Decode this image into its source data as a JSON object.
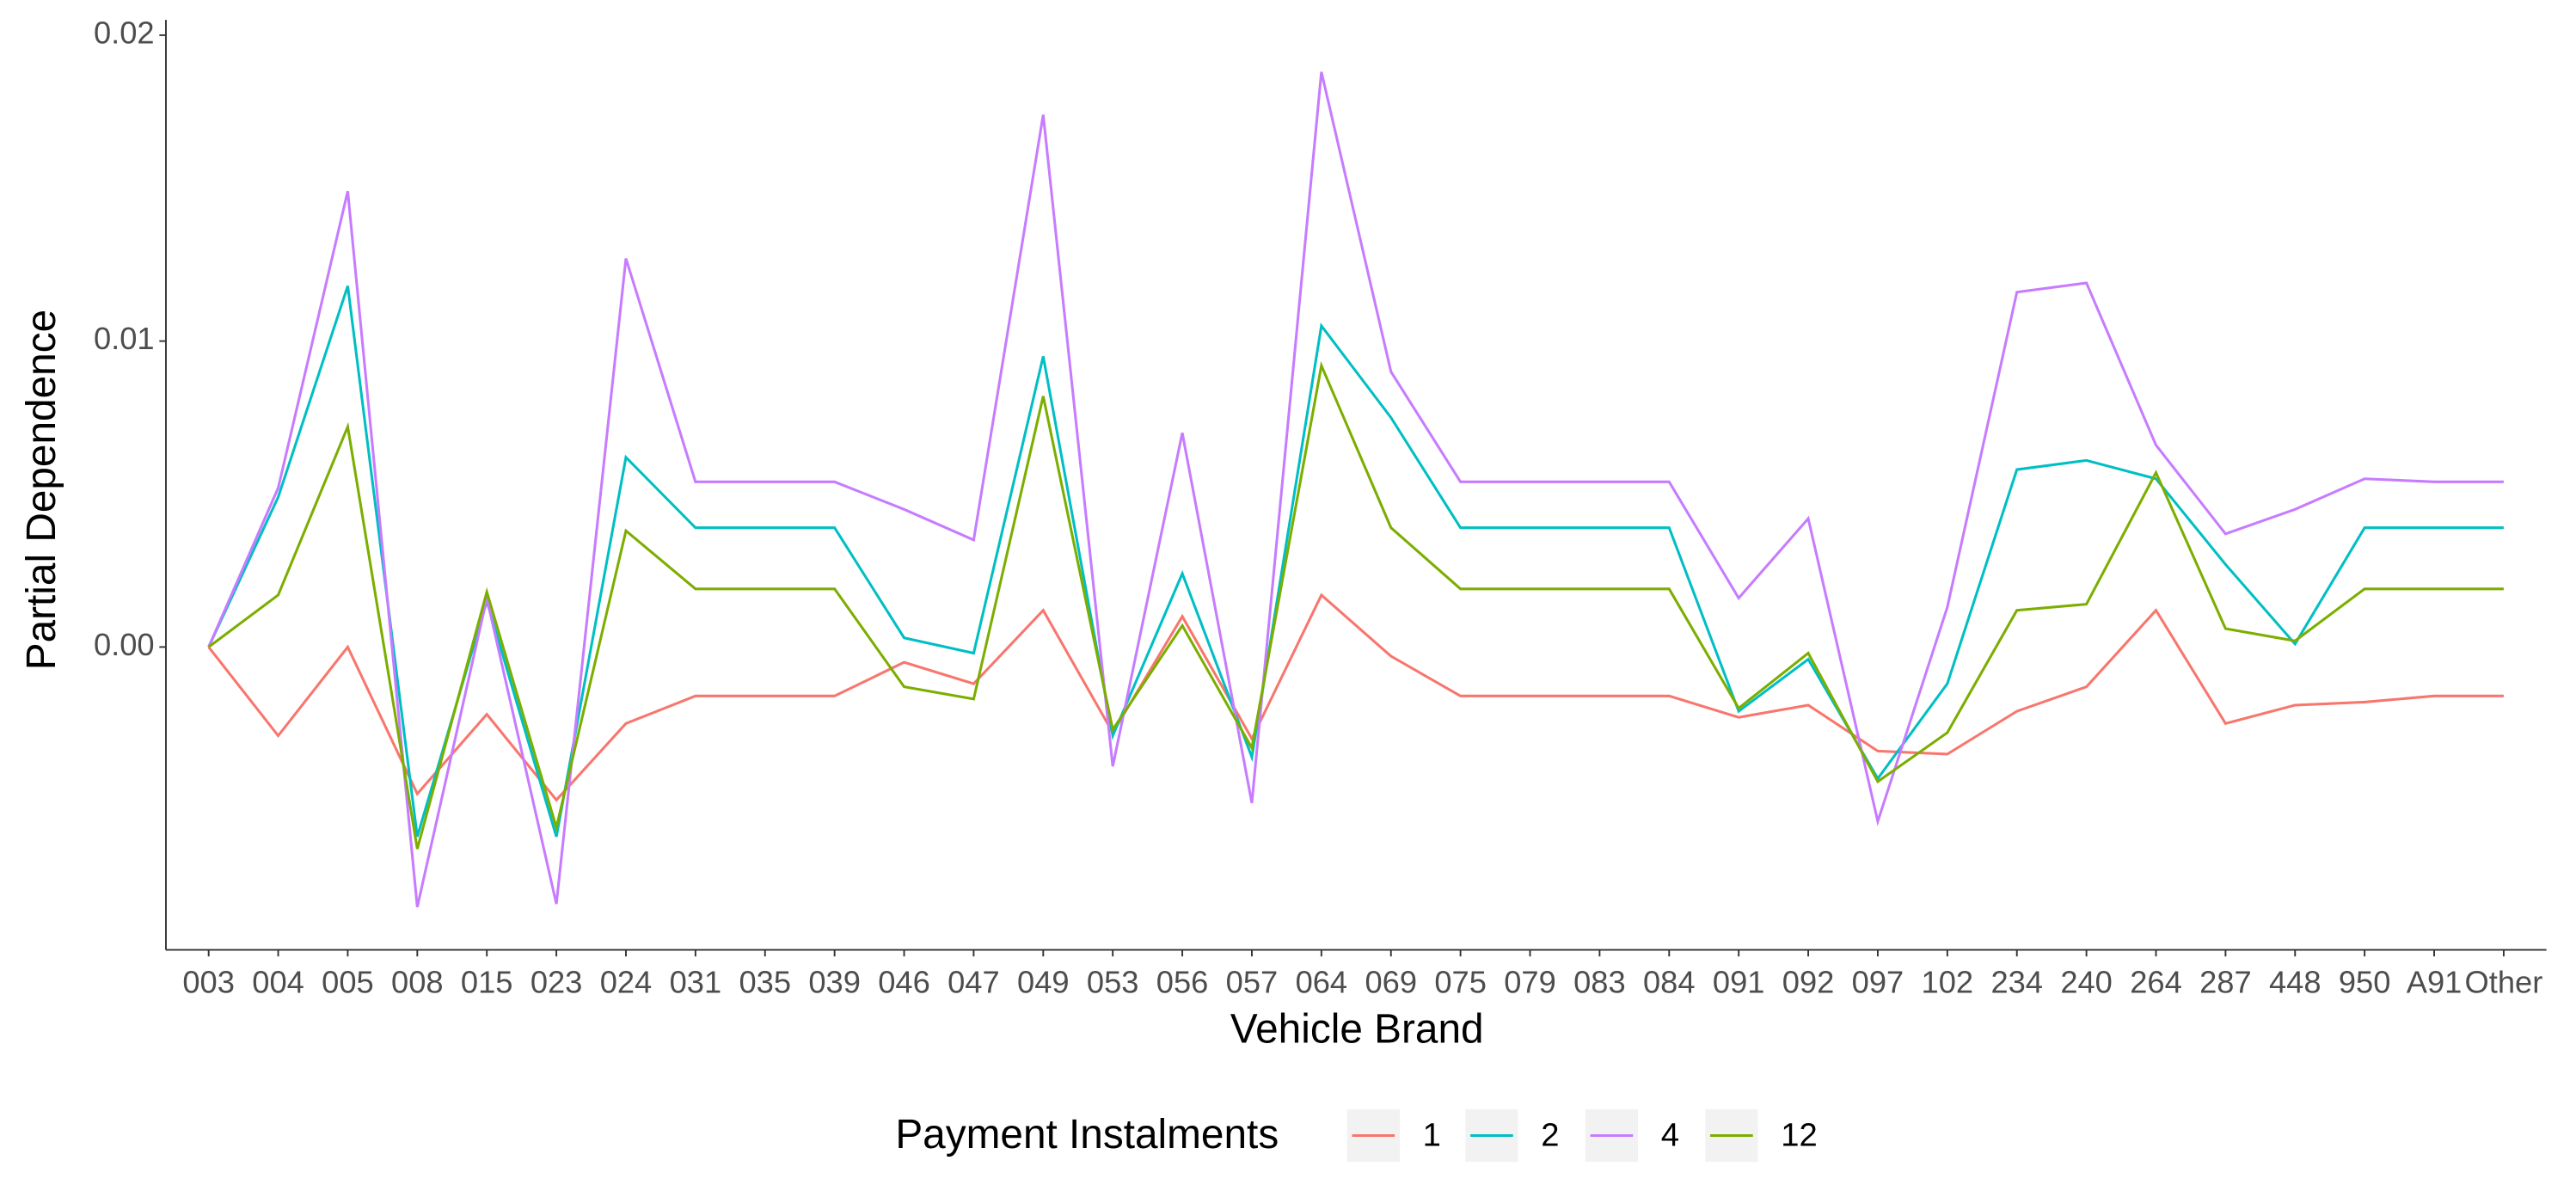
{
  "chart_data": {
    "type": "line",
    "x_label": "Vehicle Brand",
    "y_label": "Partial Dependence",
    "legend_title": "Payment Instalments",
    "legend_position": "bottom",
    "categories": [
      "003",
      "004",
      "005",
      "008",
      "015",
      "023",
      "024",
      "031",
      "035",
      "039",
      "046",
      "047",
      "049",
      "053",
      "056",
      "057",
      "064",
      "069",
      "075",
      "079",
      "083",
      "084",
      "091",
      "092",
      "097",
      "102",
      "234",
      "240",
      "264",
      "287",
      "448",
      "950",
      "A91",
      "Other"
    ],
    "ylim": [
      -0.0099,
      0.0205
    ],
    "yticks": [
      {
        "value": 0,
        "label": "0.00"
      },
      {
        "value": 0.01,
        "label": "0.01"
      },
      {
        "value": 0.02,
        "label": "0.02"
      }
    ],
    "series": [
      {
        "name": "1",
        "color": "#F8766D",
        "values": [
          0,
          -0.0029,
          0,
          -0.0048,
          -0.0022,
          -0.005,
          -0.0025,
          -0.0016,
          -0.0016,
          -0.0016,
          -0.0005,
          -0.0012,
          0.0012,
          -0.0028,
          0.001,
          -0.003,
          0.0017,
          -0.0003,
          -0.0016,
          -0.0016,
          -0.0016,
          -0.0016,
          -0.0023,
          -0.0019,
          -0.0034,
          -0.0035,
          -0.0021,
          -0.0013,
          0.0012,
          -0.0025,
          -0.0019,
          -0.0018,
          -0.0016,
          -0.0016
        ]
      },
      {
        "name": "2",
        "color": "#00BFC4",
        "values": [
          0,
          0.0049,
          0.0118,
          -0.0062,
          0.0015,
          -0.0062,
          0.0062,
          0.0039,
          0.0039,
          0.0039,
          0.0003,
          -0.0002,
          0.0095,
          -0.0029,
          0.0024,
          -0.0036,
          0.0105,
          0.0075,
          0.0039,
          0.0039,
          0.0039,
          0.0039,
          -0.0021,
          -0.0004,
          -0.0043,
          -0.0012,
          0.0058,
          0.0061,
          0.0055,
          0.0027,
          0.0001,
          0.0039,
          0.0039,
          0.0039
        ]
      },
      {
        "name": "4",
        "color": "#C77CFF",
        "values": [
          0,
          0.0052,
          0.0149,
          -0.0085,
          0.0016,
          -0.0084,
          0.0127,
          0.0054,
          0.0054,
          0.0054,
          0.0045,
          0.0035,
          0.0174,
          -0.0039,
          0.007,
          -0.0051,
          0.0188,
          0.009,
          0.0054,
          0.0054,
          0.0054,
          0.0054,
          0.0016,
          0.0042,
          -0.0057,
          0.0013,
          0.0116,
          0.0119,
          0.0066,
          0.0037,
          0.0045,
          0.0055,
          0.0054,
          0.0054
        ]
      },
      {
        "name": "12",
        "color": "#7CAE00",
        "values": [
          0,
          0.0017,
          0.0072,
          -0.0066,
          0.0018,
          -0.0059,
          0.0038,
          0.0019,
          0.0019,
          0.0019,
          -0.0013,
          -0.0017,
          0.0082,
          -0.0027,
          0.0007,
          -0.0033,
          0.0092,
          0.0039,
          0.0019,
          0.0019,
          0.0019,
          0.0019,
          -0.002,
          -0.0002,
          -0.0044,
          -0.0028,
          0.0012,
          0.0014,
          0.0057,
          0.0006,
          0.0002,
          0.0019,
          0.0019,
          0.0019
        ]
      }
    ]
  }
}
